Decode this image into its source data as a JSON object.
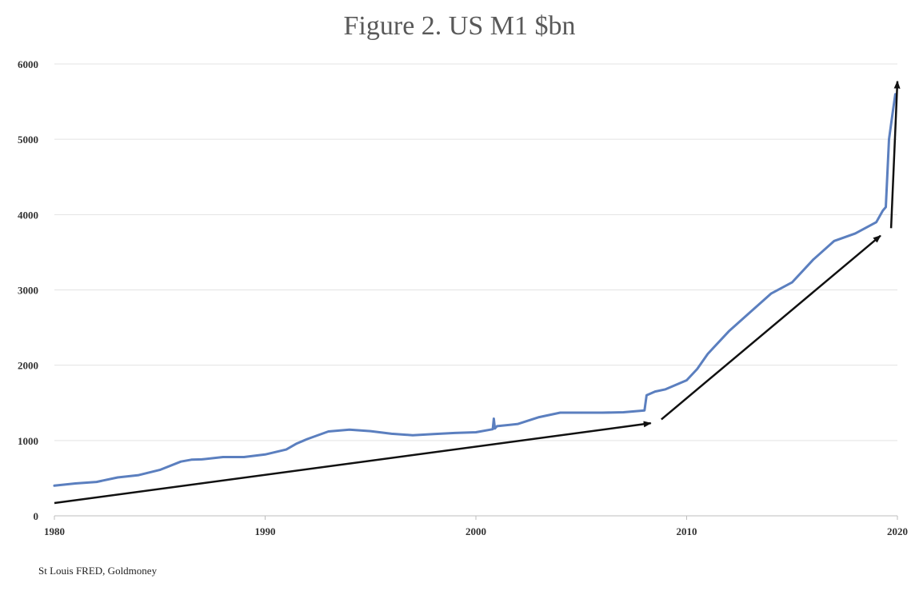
{
  "title": "Figure 2. US M1 $bn",
  "source": "St Louis FRED, Goldmoney",
  "colors": {
    "series": "#5b7fbf",
    "arrow": "#111111",
    "grid": "#e3e3e3"
  },
  "chart_data": {
    "type": "line",
    "title": "Figure 2. US M1 $bn",
    "xlabel": "",
    "ylabel": "",
    "xlim": [
      1980,
      2020
    ],
    "ylim": [
      0,
      6000
    ],
    "x_ticks": [
      "1980",
      "1990",
      "2000",
      "2010",
      "2020"
    ],
    "y_ticks": [
      "0",
      "1000",
      "2000",
      "3000",
      "4000",
      "5000",
      "6000"
    ],
    "grid": "horizontal",
    "series": [
      {
        "x": [
          1980,
          1981,
          1982,
          1983,
          1984,
          1985,
          1986,
          1986.5,
          1987,
          1988,
          1989,
          1990,
          1991,
          1991.5,
          1992,
          1993,
          1994,
          1995,
          1996,
          1997,
          1998,
          1999,
          2000,
          2000.8,
          2000.85,
          2000.9,
          2001,
          2002,
          2003,
          2004,
          2005,
          2006,
          2007,
          2008,
          2008.1,
          2008.5,
          2009,
          2010,
          2010.5,
          2011,
          2012,
          2013,
          2014,
          2015,
          2016,
          2017,
          2018,
          2019,
          2019.3,
          2019.45,
          2019.6,
          2019.8,
          2019.9
        ],
        "y": [
          400,
          430,
          450,
          510,
          540,
          610,
          720,
          745,
          750,
          780,
          780,
          815,
          880,
          960,
          1020,
          1120,
          1145,
          1125,
          1090,
          1070,
          1085,
          1100,
          1110,
          1150,
          1290,
          1160,
          1190,
          1220,
          1310,
          1370,
          1370,
          1370,
          1375,
          1400,
          1600,
          1650,
          1680,
          1800,
          1950,
          2150,
          2450,
          2700,
          2950,
          3100,
          3400,
          3650,
          3750,
          3900,
          4050,
          4100,
          5000,
          5400,
          5600
        ]
      }
    ],
    "annotations": [
      {
        "type": "arrow",
        "from": [
          1980,
          170
        ],
        "to": [
          2008.3,
          1230
        ]
      },
      {
        "type": "arrow",
        "from": [
          2008.8,
          1280
        ],
        "to": [
          2019.2,
          3720
        ]
      },
      {
        "type": "arrow",
        "from": [
          2019.7,
          3820
        ],
        "to": [
          2020,
          5770
        ]
      }
    ]
  }
}
